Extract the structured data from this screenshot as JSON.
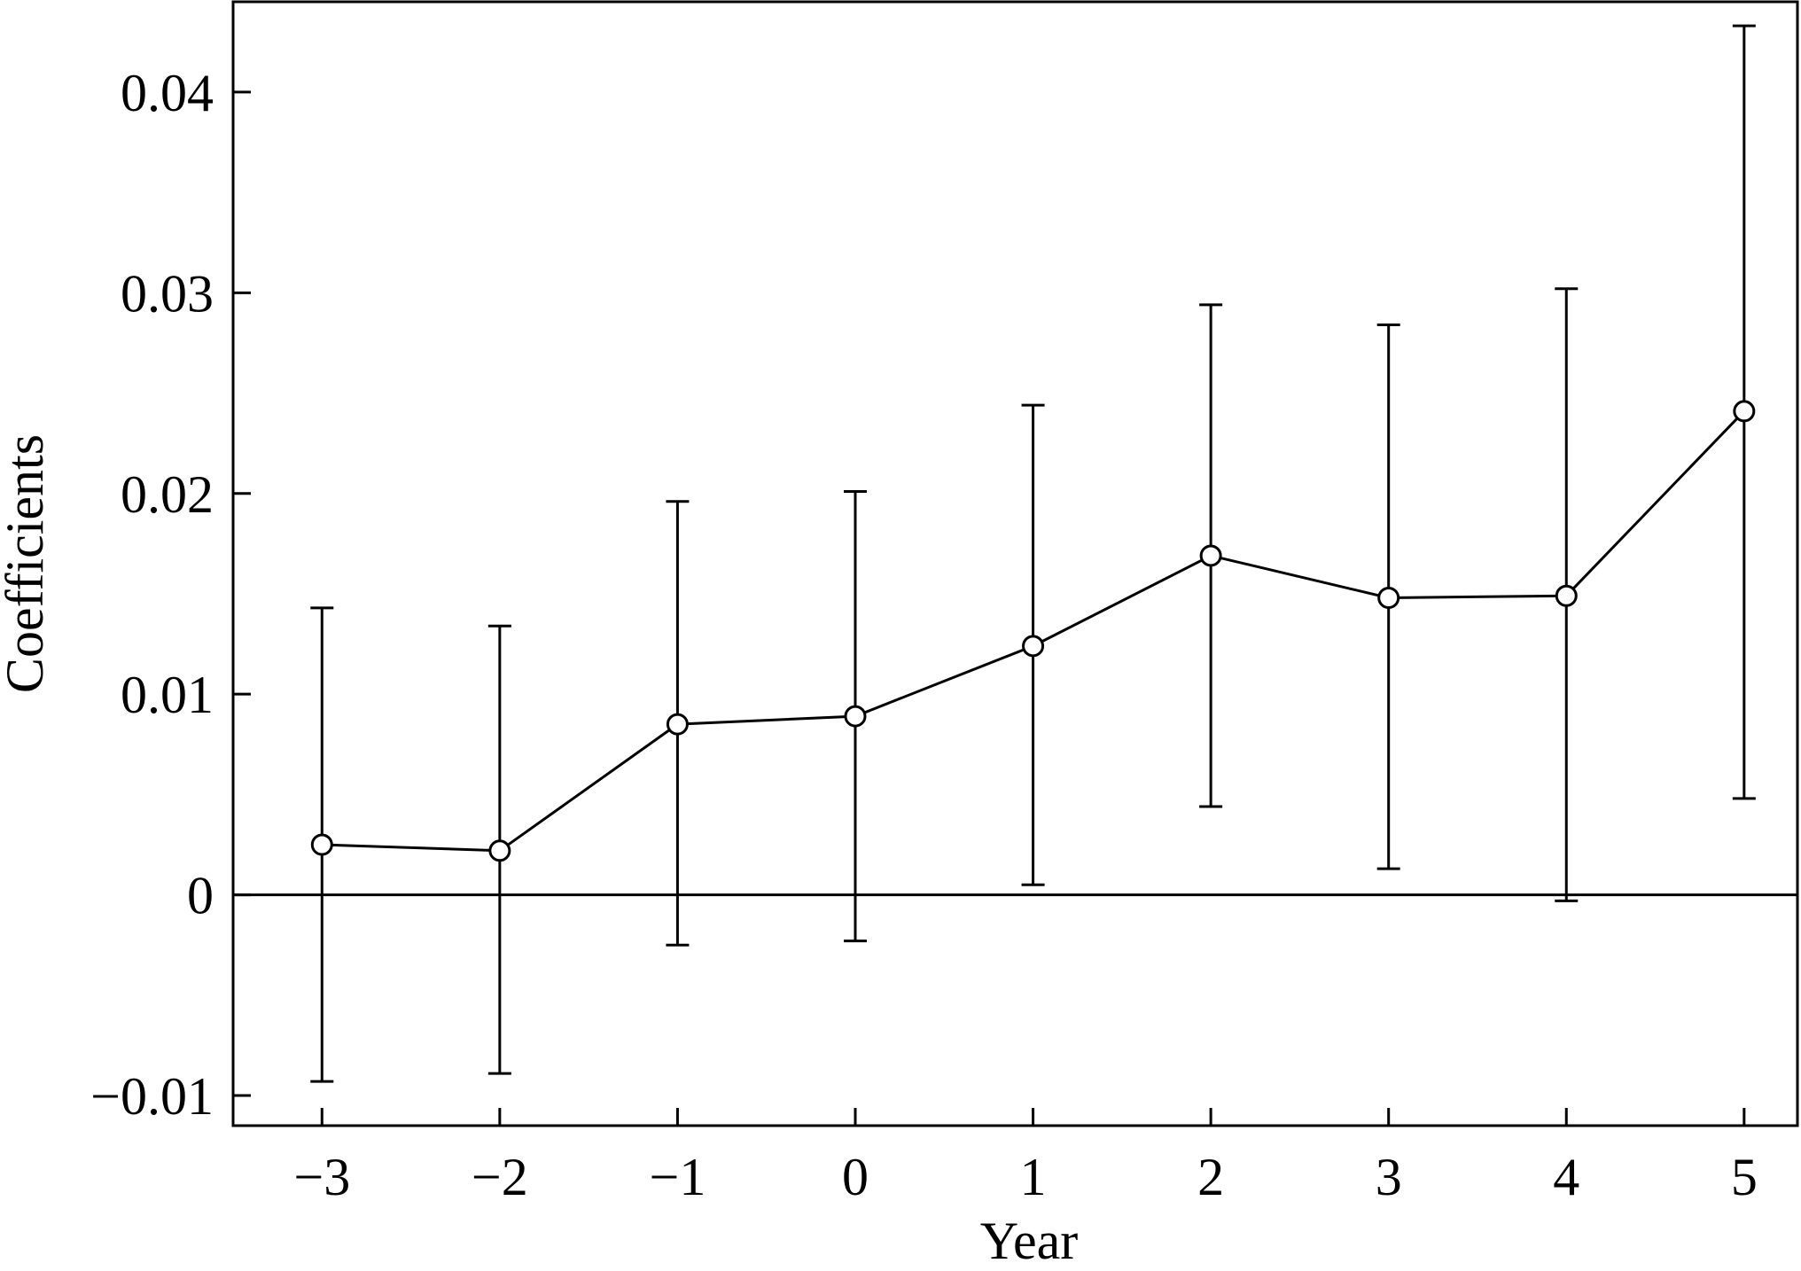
{
  "chart_data": {
    "type": "line",
    "xlabel": "Year",
    "ylabel": "Coefficients",
    "xlim": [
      -3.5,
      5.3
    ],
    "ylim": [
      -0.0115,
      0.0445
    ],
    "x_ticks": [
      -3,
      -2,
      -1,
      0,
      1,
      2,
      3,
      4,
      5
    ],
    "x_tick_labels": [
      "−3",
      "−2",
      "−1",
      "0",
      "1",
      "2",
      "3",
      "4",
      "5"
    ],
    "y_ticks": [
      -0.01,
      0,
      0.01,
      0.02,
      0.03,
      0.04
    ],
    "y_tick_labels": [
      "−0.01",
      "0",
      "0.01",
      "0.02",
      "0.03",
      "0.04"
    ],
    "reference_line_y": 0,
    "grid": false,
    "marker": "open-circle",
    "series": [
      {
        "x": [
          -3,
          -2,
          -1,
          0,
          1,
          2,
          3,
          4,
          5
        ],
        "values": [
          0.0025,
          0.0022,
          0.0085,
          0.0089,
          0.0124,
          0.0169,
          0.0148,
          0.0149,
          0.0241
        ],
        "ci_lower": [
          -0.0093,
          -0.0089,
          -0.0025,
          -0.0023,
          0.0005,
          0.0044,
          0.0013,
          -0.0003,
          0.0048
        ],
        "ci_upper": [
          0.0143,
          0.0134,
          0.0196,
          0.0201,
          0.0244,
          0.0294,
          0.0284,
          0.0302,
          0.0433
        ]
      }
    ],
    "colors": {
      "line": "#000000",
      "background": "#ffffff"
    }
  }
}
